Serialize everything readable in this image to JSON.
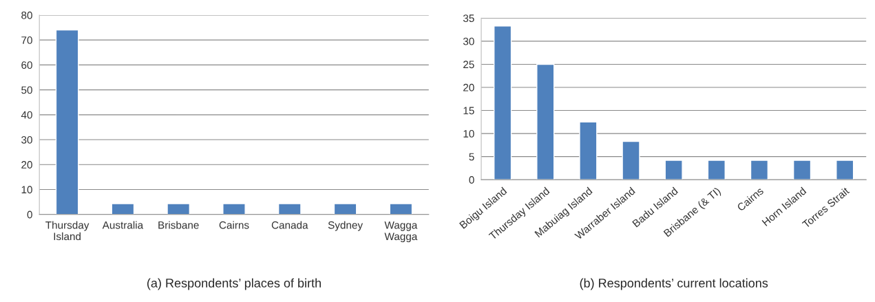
{
  "chart_data": [
    {
      "type": "bar",
      "title": "(a) Respondents’ places of birth",
      "categories": [
        "Thursday\nIsland",
        "Australia",
        "Brisbane",
        "Cairns",
        "Canada",
        "Sydney",
        "Wagga\nWagga"
      ],
      "values": [
        74,
        4.3,
        4.3,
        4.3,
        4.3,
        4.3,
        4.3
      ],
      "color": "#4f81bd",
      "ylim": [
        0,
        80
      ],
      "yticks": [
        0,
        10,
        20,
        30,
        40,
        50,
        60,
        70,
        80
      ],
      "grid": "y"
    },
    {
      "type": "bar",
      "title": "(b) Respondents’ current locations",
      "categories": [
        "Boigu Island",
        "Thursday Island",
        "Mabuiag Island",
        "Warraber Island",
        "Badu Island",
        "Brisbane (& TI)",
        "Cairns",
        "Horn Island",
        "Torres Strait"
      ],
      "values": [
        33.3,
        25,
        12.5,
        8.3,
        4.2,
        4.2,
        4.2,
        4.2,
        4.2
      ],
      "color": "#4f81bd",
      "ylim": [
        0,
        35
      ],
      "yticks": [
        0,
        5,
        10,
        15,
        20,
        25,
        30,
        35
      ],
      "grid": "y"
    }
  ]
}
